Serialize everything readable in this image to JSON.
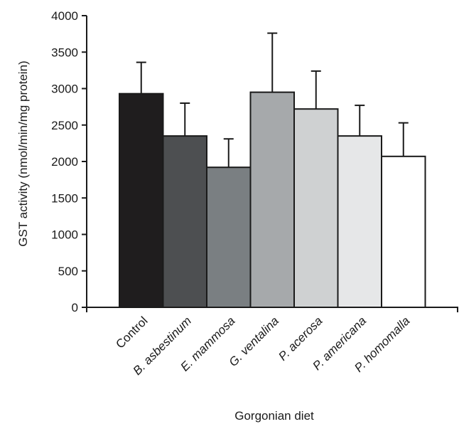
{
  "chart_data": {
    "type": "bar",
    "xlabel": "Gorgonian diet",
    "ylabel": "GST activity (nmol/min/mg protein)",
    "ylim": [
      0,
      4000
    ],
    "y_ticks": [
      "0",
      "500",
      "1000",
      "1500",
      "2000",
      "2500",
      "3000",
      "3500",
      "4000"
    ],
    "y_tick_values": [
      0,
      500,
      1000,
      1500,
      2000,
      2500,
      3000,
      3500,
      4000
    ],
    "categories": [
      "Control",
      "B. asbestinum",
      "E. mammosa",
      "G. ventalina",
      "P. acerosa",
      "P. americana",
      "P. homomalla"
    ],
    "italic_categories": [
      false,
      true,
      true,
      true,
      true,
      true,
      true
    ],
    "values": [
      2930,
      2350,
      1920,
      2950,
      2720,
      2350,
      2070
    ],
    "error_upper": [
      3360,
      2800,
      2310,
      3760,
      3240,
      2770,
      2530
    ],
    "bar_colors": [
      "#1f1d1e",
      "#4d4f51",
      "#7a7f82",
      "#a6a9ab",
      "#cfd1d2",
      "#e6e7e8",
      "#ffffff"
    ],
    "grid": false,
    "legend": "none"
  }
}
